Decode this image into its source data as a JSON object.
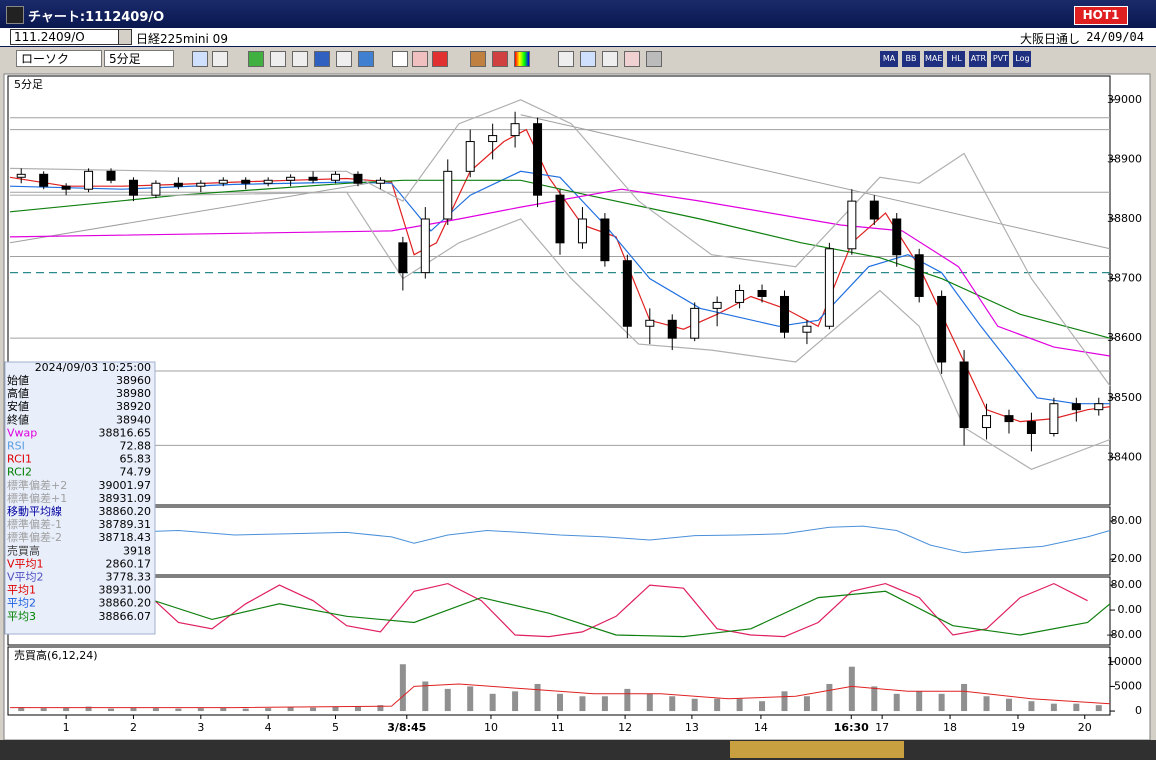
{
  "window": {
    "title": "チャート:1112409/O",
    "hot_button": "HOT1"
  },
  "symbol_bar": {
    "code": "111.2409/O",
    "name": "日経225mini 09",
    "session": "大阪日通し",
    "date": "24/09/04"
  },
  "toolbar": {
    "chart_kind": "ローソク",
    "interval": "5分足",
    "buttons": [
      "MA",
      "BB",
      "MAE",
      "HL",
      "ATR",
      "PVT",
      "Log"
    ]
  },
  "info_panel": {
    "datetime": "2024/09/03 10:25:00",
    "rows": [
      {
        "label": "始値",
        "value": "38960",
        "color": "#000000"
      },
      {
        "label": "高値",
        "value": "38980",
        "color": "#000000"
      },
      {
        "label": "安値",
        "value": "38920",
        "color": "#000000"
      },
      {
        "label": "終値",
        "value": "38940",
        "color": "#000000"
      },
      {
        "label": "Vwap",
        "value": "38816.65",
        "color": "#e000e0"
      },
      {
        "label": "RSI",
        "value": "72.88",
        "color": "#5a9ee0"
      },
      {
        "label": "RCI1",
        "value": "65.83",
        "color": "#e00000"
      },
      {
        "label": "RCI2",
        "value": "74.79",
        "color": "#008000"
      },
      {
        "label": "標準偏差+2",
        "value": "39001.97",
        "color": "#a0a0a0"
      },
      {
        "label": "標準偏差+1",
        "value": "38931.09",
        "color": "#a0a0a0"
      },
      {
        "label": "移動平均線",
        "value": "38860.20",
        "color": "#0000a0"
      },
      {
        "label": "標準偏差-1",
        "value": "38789.31",
        "color": "#a0a0a0"
      },
      {
        "label": "標準偏差-2",
        "value": "38718.43",
        "color": "#a0a0a0"
      },
      {
        "label": "売買高",
        "value": "3918",
        "color": "#404040"
      },
      {
        "label": "V平均1",
        "value": "2860.17",
        "color": "#e00000"
      },
      {
        "label": "V平均2",
        "value": "3778.33",
        "color": "#5050c0"
      },
      {
        "label": "平均1",
        "value": "38931.00",
        "color": "#e00000"
      },
      {
        "label": "平均2",
        "value": "38860.20",
        "color": "#2060e0"
      },
      {
        "label": "平均3",
        "value": "38866.07",
        "color": "#008000"
      }
    ]
  },
  "chart_data": {
    "type": "candlestick",
    "panel_label": "5分足",
    "xlim": [
      0,
      196
    ],
    "xticks": [
      {
        "value": 10,
        "label": "1"
      },
      {
        "value": 22,
        "label": "2"
      },
      {
        "value": 34,
        "label": "3"
      },
      {
        "value": 46,
        "label": "4"
      },
      {
        "value": 58,
        "label": "5"
      },
      {
        "value": 70.7,
        "label": "3/8:45"
      },
      {
        "value": 85.7,
        "label": "10"
      },
      {
        "value": 97.6,
        "label": "11"
      },
      {
        "value": 109.6,
        "label": "12"
      },
      {
        "value": 121.5,
        "label": "13"
      },
      {
        "value": 133.8,
        "label": "14"
      },
      {
        "value": 149.9,
        "label": "16:30"
      },
      {
        "value": 155.4,
        "label": "17"
      },
      {
        "value": 167.5,
        "label": "18"
      },
      {
        "value": 179.6,
        "label": "19"
      },
      {
        "value": 191.5,
        "label": "20"
      }
    ],
    "ylim": [
      38320,
      39040
    ],
    "yticks": [
      38400,
      38500,
      38600,
      38700,
      38800,
      38900,
      39000
    ],
    "up_color": "#ffffff",
    "down_color": "#000000",
    "candles": {
      "x": [
        2,
        6,
        10,
        14,
        18,
        22,
        26,
        30,
        34,
        38,
        42,
        46,
        50,
        54,
        58,
        62,
        66,
        70,
        74,
        78,
        82,
        86,
        90,
        94,
        98,
        102,
        106,
        110,
        114,
        118,
        122,
        126,
        130,
        134,
        138,
        142,
        146,
        150,
        154,
        158,
        162,
        166,
        170,
        174,
        178,
        182,
        186,
        190,
        194
      ],
      "open": [
        38870,
        38875,
        38855,
        38850,
        38880,
        38865,
        38840,
        38860,
        38855,
        38860,
        38865,
        38860,
        38865,
        38870,
        38865,
        38875,
        38860,
        38760,
        38710,
        38800,
        38880,
        38930,
        38940,
        38960,
        38840,
        38760,
        38800,
        38730,
        38620,
        38630,
        38600,
        38650,
        38660,
        38680,
        38670,
        38610,
        38620,
        38750,
        38830,
        38800,
        38740,
        38670,
        38560,
        38450,
        38470,
        38460,
        38440,
        38490,
        38480
      ],
      "high": [
        38885,
        38880,
        38860,
        38885,
        38885,
        38870,
        38865,
        38870,
        38865,
        38870,
        38870,
        38870,
        38875,
        38880,
        38880,
        38880,
        38870,
        38770,
        38820,
        38900,
        38950,
        38960,
        38980,
        38970,
        38850,
        38820,
        38810,
        38740,
        38650,
        38640,
        38660,
        38670,
        38690,
        38690,
        38680,
        38630,
        38760,
        38850,
        38840,
        38810,
        38750,
        38680,
        38580,
        38490,
        38480,
        38475,
        38500,
        38500,
        38500
      ],
      "low": [
        38860,
        38850,
        38840,
        38845,
        38860,
        38830,
        38835,
        38850,
        38845,
        38855,
        38850,
        38855,
        38855,
        38860,
        38860,
        38855,
        38850,
        38680,
        38700,
        38790,
        38870,
        38900,
        38920,
        38820,
        38740,
        38750,
        38720,
        38600,
        38590,
        38580,
        38595,
        38620,
        38650,
        38660,
        38600,
        38590,
        38615,
        38740,
        38790,
        38720,
        38660,
        38540,
        38420,
        38430,
        38440,
        38410,
        38435,
        38460,
        38470
      ],
      "close": [
        38875,
        38855,
        38850,
        38880,
        38865,
        38840,
        38860,
        38855,
        38860,
        38865,
        38860,
        38865,
        38870,
        38865,
        38875,
        38860,
        38865,
        38710,
        38800,
        38880,
        38930,
        38940,
        38960,
        38840,
        38760,
        38800,
        38730,
        38620,
        38630,
        38600,
        38650,
        38660,
        38680,
        38670,
        38610,
        38620,
        38750,
        38830,
        38800,
        38740,
        38670,
        38560,
        38450,
        38470,
        38460,
        38440,
        38490,
        38480,
        38490
      ]
    },
    "overlays": [
      {
        "color": "#e02020",
        "x": [
          0,
          10,
          20,
          30,
          40,
          50,
          60,
          68,
          72,
          76,
          82,
          88,
          92,
          96,
          102,
          108,
          114,
          120,
          126,
          132,
          138,
          144,
          150,
          156,
          162,
          168,
          174,
          180,
          186,
          192,
          196
        ],
        "values": [
          38870,
          38855,
          38855,
          38858,
          38862,
          38865,
          38868,
          38862,
          38740,
          38760,
          38880,
          38930,
          38950,
          38870,
          38790,
          38770,
          38630,
          38615,
          38640,
          38670,
          38650,
          38620,
          38760,
          38810,
          38720,
          38600,
          38480,
          38460,
          38465,
          38480,
          38485
        ]
      },
      {
        "color": "#2070e0",
        "x": [
          0,
          20,
          40,
          60,
          68,
          75,
          82,
          91,
          98,
          106,
          114,
          123,
          137,
          144,
          153,
          160,
          166,
          173,
          183,
          190,
          196
        ],
        "values": [
          38855,
          38850,
          38858,
          38862,
          38860,
          38780,
          38840,
          38880,
          38870,
          38790,
          38700,
          38650,
          38620,
          38630,
          38720,
          38740,
          38710,
          38620,
          38500,
          38490,
          38490
        ]
      },
      {
        "color": "#108010",
        "x": [
          0,
          30,
          60,
          70,
          80,
          91,
          103,
          123,
          141,
          155,
          166,
          180,
          196
        ],
        "values": [
          38812,
          38840,
          38860,
          38865,
          38865,
          38865,
          38840,
          38800,
          38760,
          38735,
          38700,
          38640,
          38600
        ]
      },
      {
        "color": "#e000e0",
        "x": [
          0,
          68,
          80,
          91,
          109,
          123,
          148,
          159,
          169,
          176,
          186,
          196
        ],
        "values": [
          38770,
          38780,
          38800,
          38820,
          38850,
          38830,
          38790,
          38780,
          38720,
          38620,
          38585,
          38570
        ]
      },
      {
        "color": "#b0b0b0",
        "x": [
          0,
          30,
          60,
          70,
          80,
          91,
          100,
          112,
          125,
          140,
          155,
          162,
          170,
          182,
          196
        ],
        "values": [
          38885,
          38880,
          38880,
          38830,
          38960,
          39000,
          38960,
          38830,
          38740,
          38720,
          38870,
          38860,
          38910,
          38700,
          38520
        ]
      },
      {
        "color": "#b0b0b0",
        "x": [
          0,
          30,
          60,
          70,
          80,
          91,
          100,
          112,
          125,
          140,
          155,
          162,
          170,
          182,
          196
        ],
        "values": [
          38840,
          38840,
          38845,
          38700,
          38760,
          38800,
          38700,
          38590,
          38580,
          38560,
          38680,
          38620,
          38450,
          38380,
          38430
        ]
      }
    ],
    "hlines": {
      "color": "#a0a0a0",
      "values": [
        38970,
        38950,
        38845,
        38737,
        38600,
        38545,
        38420
      ]
    },
    "dashed_line": {
      "color": "#2a8a8a",
      "value": 38710
    },
    "trendlines": [
      {
        "color": "#a0a0a0",
        "x": [
          0,
          67
        ],
        "values": [
          38760,
          38865
        ]
      },
      {
        "color": "#a0a0a0",
        "x": [
          91,
          196
        ],
        "values": [
          38975,
          38750
        ]
      }
    ],
    "rsi": {
      "ylim": [
        -5,
        102
      ],
      "yticks": [
        {
          "value": 20,
          "label": "20.00"
        },
        {
          "value": 80,
          "label": "80.00"
        }
      ],
      "color": "#4a90d9",
      "x": [
        0,
        10,
        20,
        30,
        40,
        50,
        60,
        68,
        72,
        78,
        85,
        91,
        98,
        106,
        114,
        122,
        130,
        138,
        146,
        152,
        158,
        164,
        170,
        176,
        184,
        192,
        196
      ],
      "values": [
        55,
        60,
        62,
        65,
        58,
        60,
        62,
        55,
        45,
        58,
        65,
        62,
        58,
        55,
        50,
        57,
        58,
        60,
        70,
        72,
        65,
        42,
        30,
        35,
        40,
        55,
        65
      ]
    },
    "osc": {
      "ylim": [
        -112,
        106
      ],
      "yticks": [
        {
          "value": 80,
          "label": "80.00"
        },
        {
          "value": 0,
          "label": "0.00"
        },
        {
          "value": -80,
          "label": "-80.00"
        }
      ],
      "series": [
        {
          "color": "#e02060",
          "x": [
            0,
            6,
            12,
            18,
            24,
            30,
            36,
            42,
            48,
            54,
            60,
            66,
            72,
            78,
            84,
            90,
            96,
            102,
            108,
            114,
            120,
            126,
            132,
            138,
            144,
            150,
            156,
            162,
            168,
            174,
            180,
            186,
            192
          ],
          "values": [
            40,
            -60,
            -20,
            80,
            60,
            -40,
            -60,
            20,
            80,
            30,
            -50,
            -70,
            60,
            85,
            30,
            -80,
            -85,
            -70,
            -20,
            80,
            70,
            -60,
            -80,
            -85,
            -40,
            60,
            85,
            40,
            -80,
            -60,
            40,
            85,
            30
          ]
        },
        {
          "color": "#108010",
          "x": [
            0,
            12,
            24,
            36,
            48,
            60,
            72,
            84,
            96,
            108,
            120,
            132,
            144,
            156,
            168,
            180,
            192,
            196
          ],
          "values": [
            50,
            -20,
            40,
            -30,
            20,
            -20,
            -40,
            40,
            -10,
            -80,
            -85,
            -60,
            40,
            60,
            -50,
            -80,
            -40,
            20
          ]
        }
      ]
    },
    "volume": {
      "label": "売買高(6,12,24)",
      "ylim": [
        -800,
        13000
      ],
      "yticks": [
        0,
        5000,
        10000
      ],
      "color": "#909090",
      "values": [
        800,
        600,
        700,
        900,
        500,
        700,
        600,
        500,
        600,
        700,
        500,
        600,
        800,
        700,
        900,
        1000,
        1200,
        9500,
        6000,
        4500,
        5000,
        3500,
        4000,
        5500,
        3500,
        3000,
        3000,
        4500,
        3500,
        3000,
        2500,
        2500,
        2500,
        2000,
        4000,
        3000,
        5500,
        9000,
        5000,
        3500,
        4000,
        3500,
        5500,
        3000,
        2500,
        2000,
        1500,
        1500,
        1200
      ],
      "ma": {
        "color": "#e02020",
        "x": [
          0,
          40,
          68,
          72,
          80,
          92,
          104,
          116,
          128,
          140,
          150,
          160,
          170,
          182,
          196
        ],
        "values": [
          700,
          700,
          1000,
          5000,
          5500,
          4500,
          3500,
          3500,
          2500,
          3000,
          5000,
          4000,
          4000,
          2500,
          1500
        ]
      }
    }
  }
}
